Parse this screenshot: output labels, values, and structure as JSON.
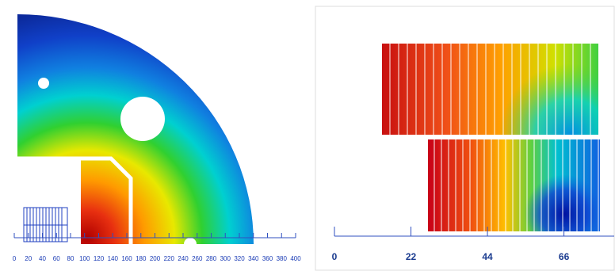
{
  "chart_data": [
    {
      "type": "contour",
      "xlim": [
        0,
        400
      ],
      "xticks": [
        0,
        20,
        40,
        60,
        80,
        100,
        120,
        140,
        160,
        180,
        200,
        220,
        240,
        260,
        280,
        300,
        320,
        340,
        360,
        380,
        400
      ]
    },
    {
      "type": "contour",
      "xlim": [
        0,
        80
      ],
      "xticks": [
        0,
        22,
        44,
        66
      ]
    }
  ]
}
